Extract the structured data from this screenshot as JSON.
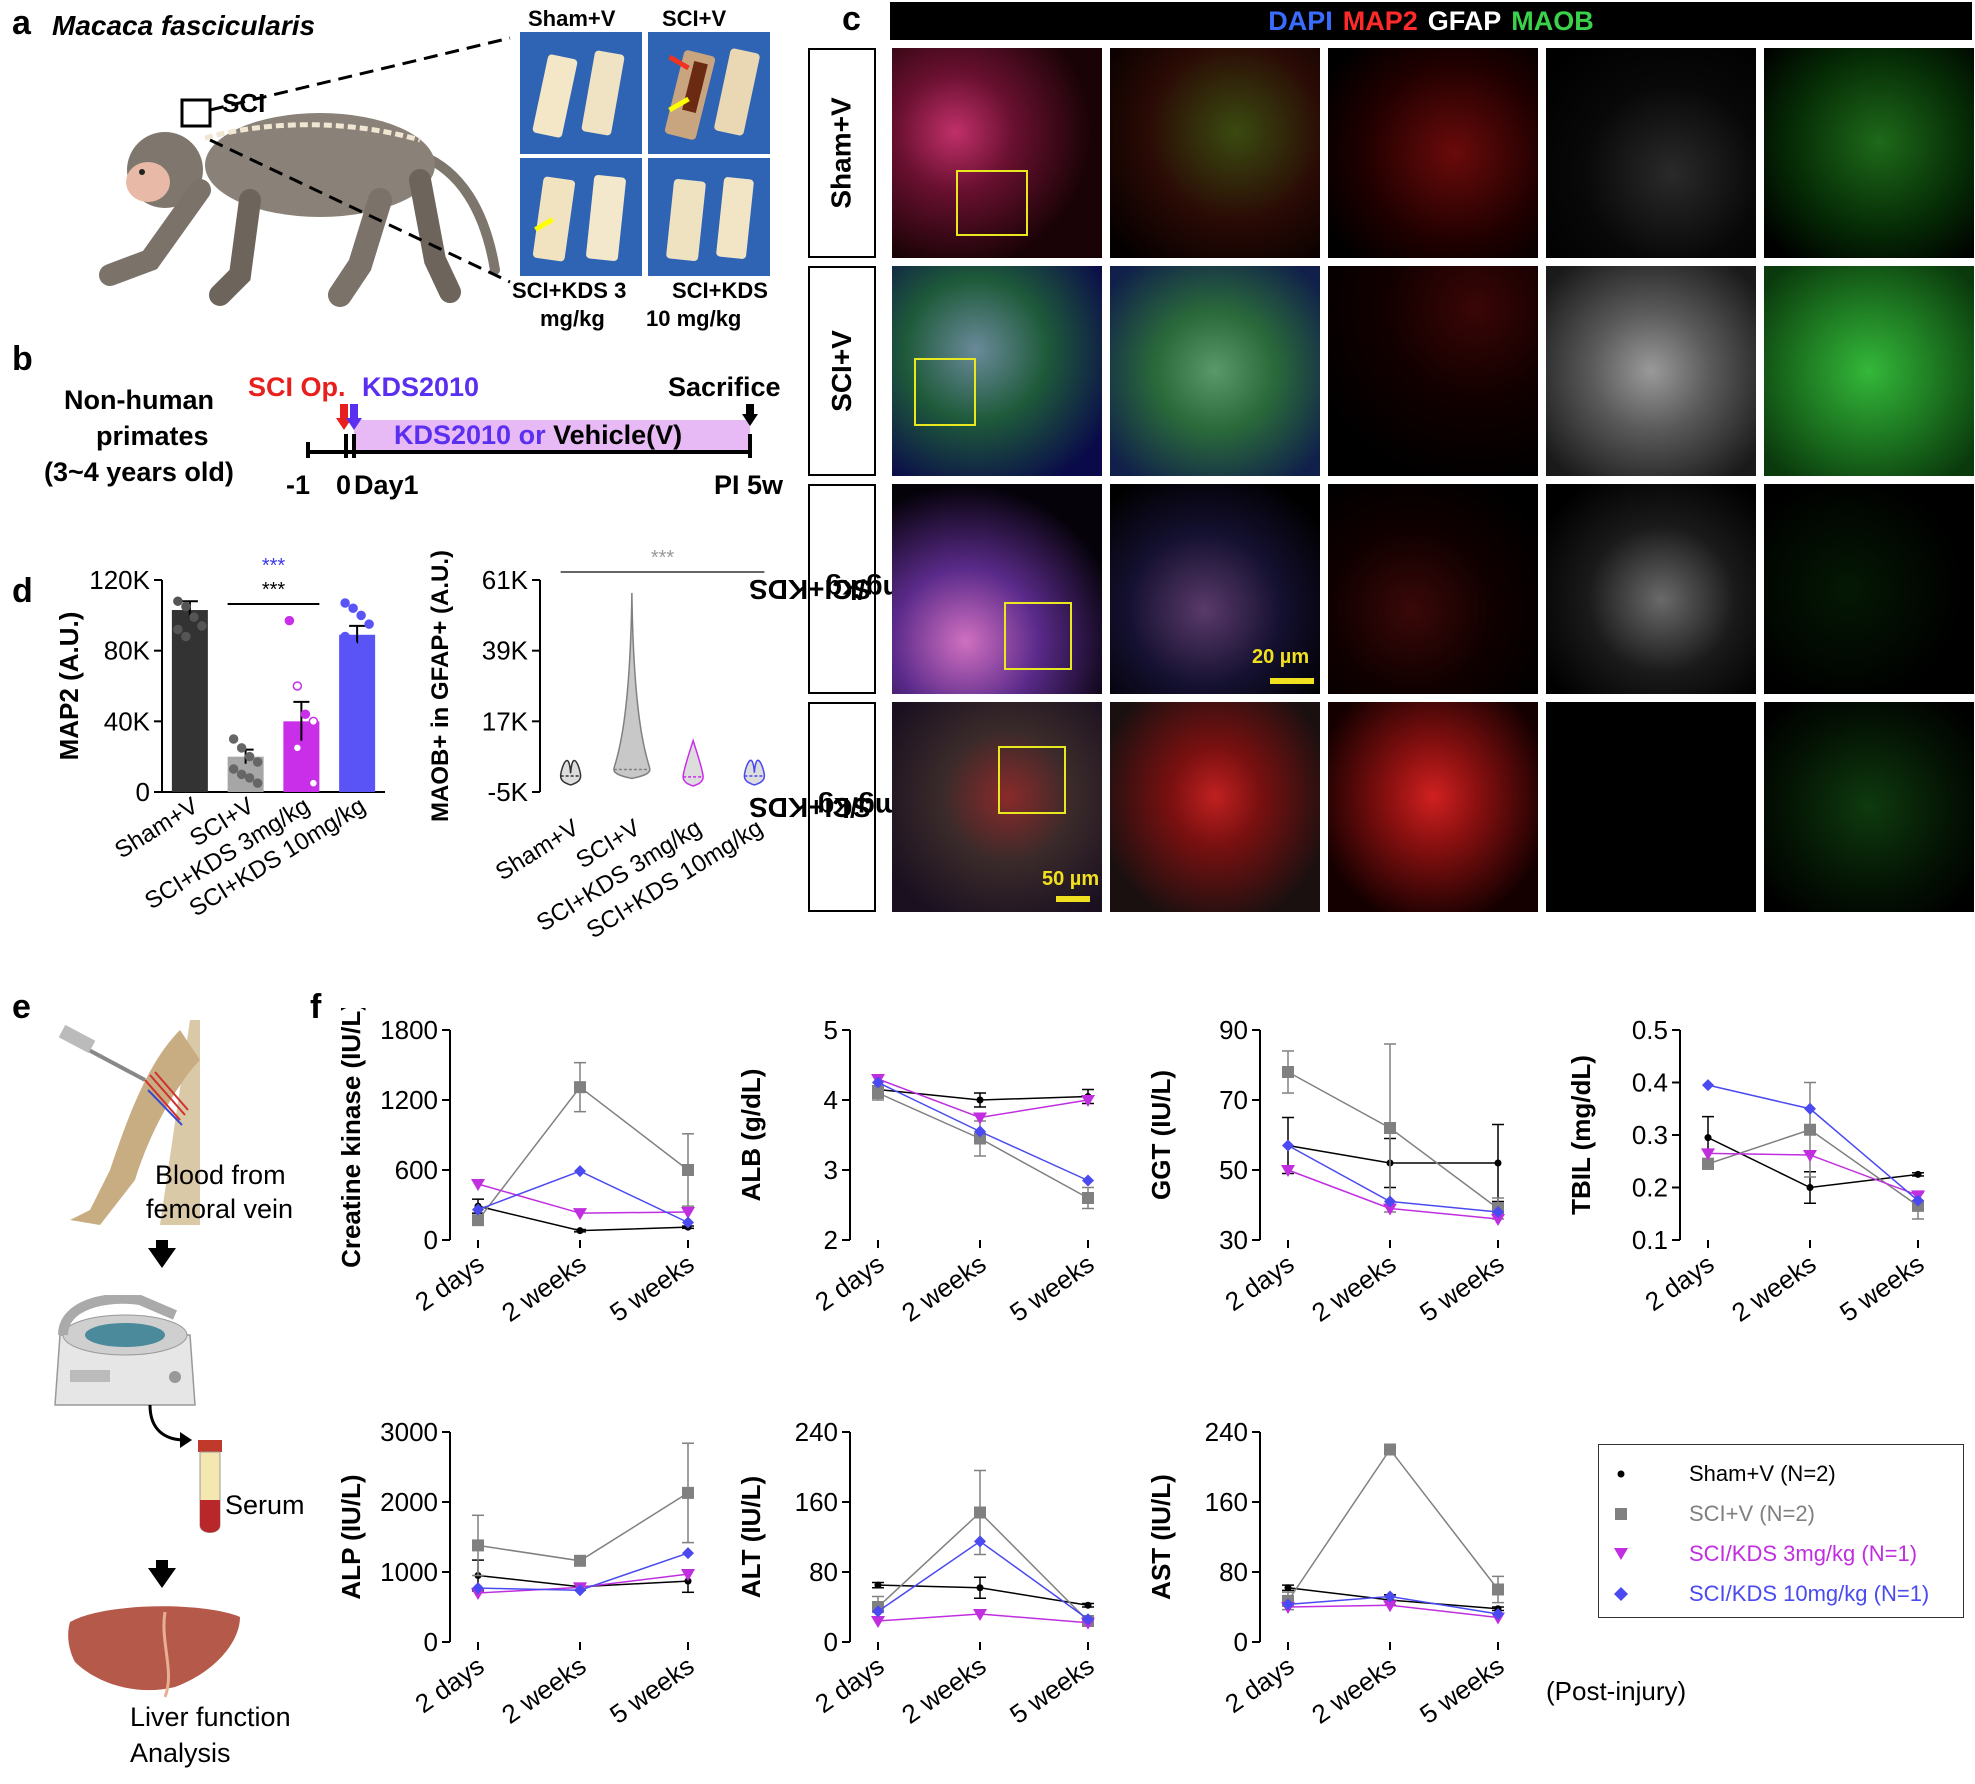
{
  "panels": {
    "a": {
      "label": "a",
      "species": "Macaca fascicularis",
      "sci_box_label": "SCI",
      "photos": [
        {
          "label": "Sham+V"
        },
        {
          "label": "SCI+V"
        },
        {
          "label": "SCI+KDS 3 mg/kg"
        },
        {
          "label": "SCI+KDS 10 mg/kg"
        }
      ],
      "bottom_labels": [
        "SCI+KDS 3",
        "mg/kg",
        "SCI+KDS",
        "10 mg/kg"
      ]
    },
    "b": {
      "label": "b",
      "subject_line1": "Non-human",
      "subject_line2": "primates",
      "subject_line3": "(3~4 years old)",
      "sci_op": "SCI Op.",
      "kds": "KDS2010",
      "sacrifice": "Sacrifice",
      "bar_label_part1": "KDS2010 or ",
      "bar_label_part2": "Vehicle(V)",
      "tick_m1": "-1",
      "tick_0": "0",
      "tick_day1": "Day1",
      "tick_pi": "PI 5w",
      "colors": {
        "sci": "#e8201d",
        "kds": "#5a2ff0",
        "bar": "#e7b9f5"
      }
    },
    "c": {
      "label": "c",
      "header": [
        {
          "text": "DAPI",
          "color": "#3a6cff"
        },
        {
          "text": "MAP2",
          "color": "#ff2a2a"
        },
        {
          "text": "GFAP",
          "color": "#ffffff"
        },
        {
          "text": "MAOB",
          "color": "#39d24a"
        }
      ],
      "rows": [
        {
          "line1": "Sham+V",
          "line2": ""
        },
        {
          "line1": "SCI+V",
          "line2": ""
        },
        {
          "line1": "SCI+KDS",
          "line2": "3mg/kg"
        },
        {
          "line1": "SCI+KDS",
          "line2": "10mg/kg"
        }
      ],
      "scalebar_20": "20 µm",
      "scalebar_50": "50 µm"
    },
    "d": {
      "label": "d"
    },
    "e": {
      "label": "e",
      "blood_line1": "Blood from",
      "blood_line2": "femoral vein",
      "serum": "Serum",
      "liver_line1": "Liver function",
      "liver_line2": "Analysis"
    },
    "f": {
      "label": "f",
      "post_injury": "(Post-injury)",
      "legend": [
        {
          "text": "Sham+V (N=2)",
          "color": "#000000",
          "marker": "circle"
        },
        {
          "text": "SCI+V (N=2)",
          "color": "#808080",
          "marker": "square"
        },
        {
          "text": "SCI/KDS 3mg/kg (N=1)",
          "color": "#c02ee0",
          "marker": "triangle"
        },
        {
          "text": "SCI/KDS 10mg/kg (N=1)",
          "color": "#4a4af0",
          "marker": "diamond"
        }
      ]
    }
  },
  "chart_data": [
    {
      "id": "map2",
      "type": "bar",
      "ylabel": "MAP2 (A.U.)",
      "ytick_labels": [
        "0",
        "40K",
        "80K",
        "120K"
      ],
      "ylim": [
        0,
        120000
      ],
      "categories": [
        "Sham+V",
        "SCI+V",
        "SCI+KDS 3mg/kg",
        "SCI+KDS 10mg/kg"
      ],
      "values": [
        103000,
        20000,
        40000,
        89000
      ],
      "errors": [
        5000,
        4000,
        11000,
        5000
      ],
      "colors": [
        "#333333",
        "#a6a6a6",
        "#c92ee8",
        "#5a54f7"
      ],
      "points": [
        [
          108000,
          105000,
          99000,
          94000,
          92000,
          88000
        ],
        [
          30000,
          25000,
          20000,
          17000,
          13000,
          10000,
          8000,
          5000
        ],
        [
          97000,
          60000,
          44000,
          40000,
          30000,
          25000,
          15000,
          5000
        ],
        [
          107000,
          104000,
          100000,
          95000,
          88000,
          83000,
          79000,
          76000
        ]
      ],
      "sig_line1": "***",
      "sig_line1_color": "#3a3ae8",
      "sig_line2": "***"
    },
    {
      "id": "maob",
      "type": "violin",
      "ylabel": "MAOB+ in GFAP+ (A.U.)",
      "ytick_labels": [
        "-5K",
        "17K",
        "39K",
        "61K"
      ],
      "ylim": [
        -5000,
        61000
      ],
      "categories": [
        "Sham+V",
        "SCI+V",
        "SCI+KDS 3mg/kg",
        "SCI+KDS 10mg/kg"
      ],
      "medians": [
        0,
        2000,
        -300,
        0
      ],
      "maxima": [
        800,
        57000,
        11000,
        1000
      ],
      "colors": [
        "#333333",
        "#808080",
        "#c92ee8",
        "#4a4af0"
      ],
      "sig": "***"
    },
    {
      "id": "ck",
      "type": "line",
      "ylabel": "Creatine kinase (IU/L)",
      "ytick_labels": [
        "0",
        "600",
        "1200",
        "1800"
      ],
      "ylim": [
        0,
        1800
      ],
      "categories": [
        "2 days",
        "2 weeks",
        "5 weeks"
      ],
      "series": [
        {
          "name": "Sham+V",
          "values": [
            290,
            80,
            110
          ],
          "errors": [
            60,
            10,
            10
          ]
        },
        {
          "name": "SCI+V",
          "values": [
            170,
            1310,
            600
          ],
          "errors": [
            30,
            210,
            310
          ]
        },
        {
          "name": "SCI/KDS 3mg/kg",
          "values": [
            480,
            230,
            240
          ]
        },
        {
          "name": "SCI/KDS 10mg/kg",
          "values": [
            260,
            590,
            150
          ]
        }
      ]
    },
    {
      "id": "alb",
      "type": "line",
      "ylabel": "ALB (g/dL)",
      "ytick_labels": [
        "2",
        "3",
        "4",
        "5"
      ],
      "ylim": [
        2,
        5
      ],
      "categories": [
        "2 days",
        "2 weeks",
        "5 weeks"
      ],
      "series": [
        {
          "name": "Sham+V",
          "values": [
            4.15,
            4.0,
            4.05
          ],
          "errors": [
            0.05,
            0.1,
            0.1
          ]
        },
        {
          "name": "SCI+V",
          "values": [
            4.1,
            3.45,
            2.6
          ],
          "errors": [
            0.1,
            0.25,
            0.15
          ]
        },
        {
          "name": "SCI/KDS 3mg/kg",
          "values": [
            4.3,
            3.75,
            4.0
          ]
        },
        {
          "name": "SCI/KDS 10mg/kg",
          "values": [
            4.25,
            3.55,
            2.85
          ]
        }
      ]
    },
    {
      "id": "ggt",
      "type": "line",
      "ylabel": "GGT (IU/L)",
      "ytick_labels": [
        "30",
        "50",
        "70",
        "90"
      ],
      "ylim": [
        30,
        90
      ],
      "categories": [
        "2 days",
        "2 weeks",
        "5 weeks"
      ],
      "series": [
        {
          "name": "Sham+V",
          "values": [
            57,
            52,
            52
          ],
          "errors": [
            8,
            7,
            11
          ]
        },
        {
          "name": "SCI+V",
          "values": [
            78,
            62,
            39
          ],
          "errors": [
            6,
            24,
            3
          ]
        },
        {
          "name": "SCI/KDS 3mg/kg",
          "values": [
            50,
            39,
            36
          ]
        },
        {
          "name": "SCI/KDS 10mg/kg",
          "values": [
            57,
            41,
            38
          ]
        }
      ]
    },
    {
      "id": "tbil",
      "type": "line",
      "ylabel": "TBIL (mg/dL)",
      "ytick_labels": [
        "0.1",
        "0.2",
        "0.3",
        "0.4",
        "0.5"
      ],
      "ylim": [
        0.1,
        0.5
      ],
      "categories": [
        "2 days",
        "2 weeks",
        "5 weeks"
      ],
      "series": [
        {
          "name": "Sham+V",
          "values": [
            0.295,
            0.2,
            0.225
          ],
          "errors": [
            0.04,
            0.03,
            0.003
          ]
        },
        {
          "name": "SCI+V",
          "values": [
            0.245,
            0.31,
            0.165
          ],
          "errors": [
            0.01,
            0.09,
            0.025
          ]
        },
        {
          "name": "SCI/KDS 3mg/kg",
          "values": [
            0.265,
            0.262,
            0.185
          ]
        },
        {
          "name": "SCI/KDS 10mg/kg",
          "values": [
            0.395,
            0.35,
            0.175
          ]
        }
      ]
    },
    {
      "id": "alp",
      "type": "line",
      "ylabel": "ALP (IU/L)",
      "ytick_labels": [
        "0",
        "1000",
        "2000",
        "3000"
      ],
      "ylim": [
        0,
        3000
      ],
      "categories": [
        "2 days",
        "2 weeks",
        "5 weeks"
      ],
      "series": [
        {
          "name": "Sham+V",
          "values": [
            950,
            790,
            870
          ],
          "errors": [
            220,
            50,
            160
          ]
        },
        {
          "name": "SCI+V",
          "values": [
            1380,
            1160,
            2130
          ],
          "errors": [
            430,
            60,
            710
          ]
        },
        {
          "name": "SCI/KDS 3mg/kg",
          "values": [
            700,
            780,
            970
          ]
        },
        {
          "name": "SCI/KDS 10mg/kg",
          "values": [
            770,
            740,
            1270
          ]
        }
      ]
    },
    {
      "id": "alt",
      "type": "line",
      "ylabel": "ALT (IU/L)",
      "ytick_labels": [
        "0",
        "80",
        "160",
        "240"
      ],
      "ylim": [
        0,
        240
      ],
      "categories": [
        "2 days",
        "2 weeks",
        "5 weeks"
      ],
      "series": [
        {
          "name": "Sham+V",
          "values": [
            65,
            62,
            42
          ],
          "errors": [
            3,
            12,
            2
          ]
        },
        {
          "name": "SCI+V",
          "values": [
            40,
            148,
            24
          ],
          "errors": [
            12,
            48,
            4
          ]
        },
        {
          "name": "SCI/KDS 3mg/kg",
          "values": [
            24,
            32,
            22
          ]
        },
        {
          "name": "SCI/KDS 10mg/kg",
          "values": [
            35,
            115,
            26
          ]
        }
      ]
    },
    {
      "id": "ast",
      "type": "line",
      "ylabel": "AST (IU/L)",
      "ytick_labels": [
        "0",
        "80",
        "160",
        "240"
      ],
      "ylim": [
        0,
        240
      ],
      "categories": [
        "2 days",
        "2 weeks",
        "5 weeks"
      ],
      "series": [
        {
          "name": "Sham+V",
          "values": [
            62,
            48,
            38
          ],
          "errors": [
            3,
            6,
            2
          ]
        },
        {
          "name": "SCI+V",
          "values": [
            47,
            220,
            60
          ],
          "errors": [
            10,
            5,
            15
          ]
        },
        {
          "name": "SCI/KDS 3mg/kg",
          "values": [
            40,
            42,
            28
          ]
        },
        {
          "name": "SCI/KDS 10mg/kg",
          "values": [
            43,
            52,
            32
          ]
        }
      ]
    }
  ]
}
